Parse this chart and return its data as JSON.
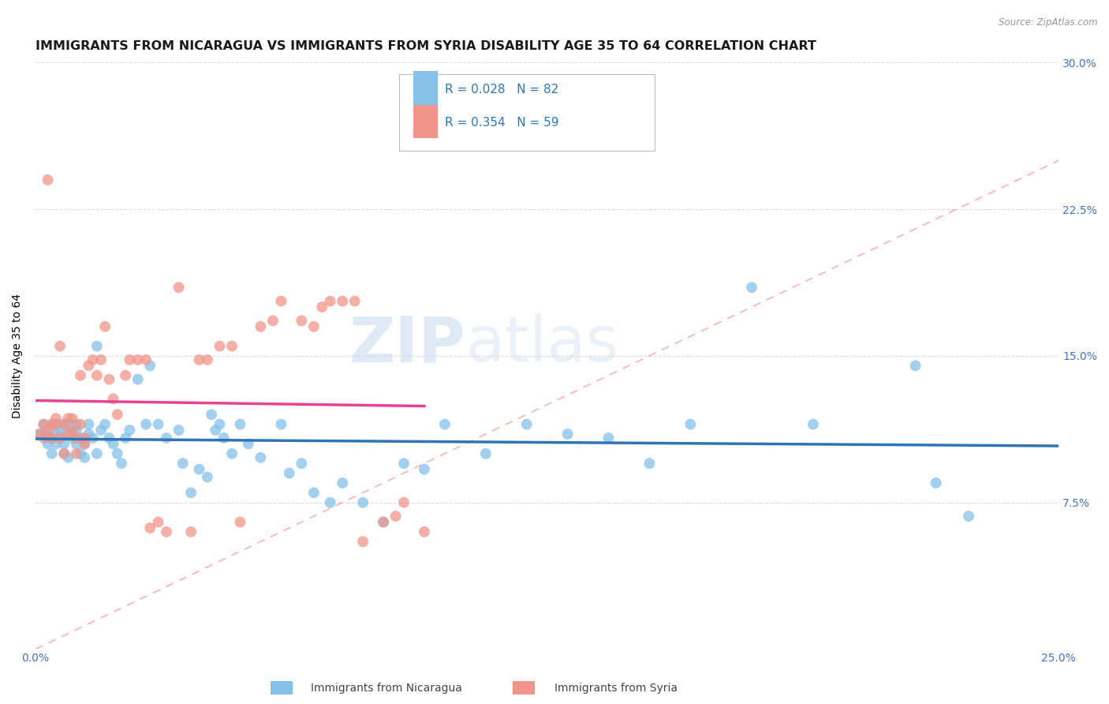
{
  "title": "IMMIGRANTS FROM NICARAGUA VS IMMIGRANTS FROM SYRIA DISABILITY AGE 35 TO 64 CORRELATION CHART",
  "source": "Source: ZipAtlas.com",
  "ylabel": "Disability Age 35 to 64",
  "xlim": [
    0,
    0.25
  ],
  "ylim": [
    0,
    0.3
  ],
  "xticks": [
    0.0,
    0.05,
    0.1,
    0.15,
    0.2,
    0.25
  ],
  "yticks": [
    0.0,
    0.075,
    0.15,
    0.225,
    0.3
  ],
  "xtick_labels_show": [
    "0.0%",
    "25.0%"
  ],
  "ytick_labels_show": [
    "7.5%",
    "15.0%",
    "22.5%",
    "30.0%"
  ],
  "nicaragua_color": "#85C1E9",
  "syria_color": "#F1948A",
  "nicaragua_R": 0.028,
  "nicaragua_N": 82,
  "syria_R": 0.354,
  "syria_N": 59,
  "legend_label_nicaragua": "Immigrants from Nicaragua",
  "legend_label_syria": "Immigrants from Syria",
  "trend_color_nicaragua": "#2E75B6",
  "trend_color_syria": "#E84393",
  "diag_line_color": "#F1948A",
  "background_color": "#FFFFFF",
  "watermark_zip": "ZIP",
  "watermark_atlas": "atlas",
  "title_fontsize": 11.5,
  "axis_label_fontsize": 10,
  "tick_fontsize": 10,
  "nicaragua_x": [
    0.001,
    0.002,
    0.002,
    0.003,
    0.003,
    0.003,
    0.004,
    0.004,
    0.004,
    0.005,
    0.005,
    0.005,
    0.006,
    0.006,
    0.007,
    0.007,
    0.007,
    0.008,
    0.008,
    0.008,
    0.009,
    0.009,
    0.01,
    0.01,
    0.01,
    0.011,
    0.011,
    0.012,
    0.012,
    0.013,
    0.013,
    0.014,
    0.015,
    0.015,
    0.016,
    0.017,
    0.018,
    0.019,
    0.02,
    0.021,
    0.022,
    0.023,
    0.025,
    0.027,
    0.028,
    0.03,
    0.032,
    0.035,
    0.036,
    0.038,
    0.04,
    0.042,
    0.043,
    0.044,
    0.045,
    0.046,
    0.048,
    0.05,
    0.052,
    0.055,
    0.06,
    0.062,
    0.065,
    0.068,
    0.072,
    0.075,
    0.08,
    0.085,
    0.09,
    0.095,
    0.1,
    0.11,
    0.12,
    0.13,
    0.14,
    0.15,
    0.16,
    0.175,
    0.19,
    0.215,
    0.22,
    0.228
  ],
  "nicaragua_y": [
    0.11,
    0.115,
    0.11,
    0.108,
    0.105,
    0.112,
    0.1,
    0.108,
    0.115,
    0.105,
    0.11,
    0.115,
    0.108,
    0.112,
    0.1,
    0.105,
    0.115,
    0.098,
    0.11,
    0.115,
    0.108,
    0.11,
    0.112,
    0.105,
    0.115,
    0.1,
    0.108,
    0.098,
    0.105,
    0.11,
    0.115,
    0.108,
    0.155,
    0.1,
    0.112,
    0.115,
    0.108,
    0.105,
    0.1,
    0.095,
    0.108,
    0.112,
    0.138,
    0.115,
    0.145,
    0.115,
    0.108,
    0.112,
    0.095,
    0.08,
    0.092,
    0.088,
    0.12,
    0.112,
    0.115,
    0.108,
    0.1,
    0.115,
    0.105,
    0.098,
    0.115,
    0.09,
    0.095,
    0.08,
    0.075,
    0.085,
    0.075,
    0.065,
    0.095,
    0.092,
    0.115,
    0.1,
    0.115,
    0.11,
    0.108,
    0.095,
    0.115,
    0.185,
    0.115,
    0.145,
    0.085,
    0.068
  ],
  "syria_x": [
    0.001,
    0.002,
    0.002,
    0.003,
    0.003,
    0.004,
    0.004,
    0.005,
    0.005,
    0.006,
    0.006,
    0.007,
    0.007,
    0.008,
    0.008,
    0.009,
    0.009,
    0.01,
    0.01,
    0.011,
    0.011,
    0.012,
    0.012,
    0.013,
    0.014,
    0.015,
    0.016,
    0.017,
    0.018,
    0.019,
    0.02,
    0.022,
    0.023,
    0.025,
    0.027,
    0.028,
    0.03,
    0.032,
    0.035,
    0.038,
    0.04,
    0.042,
    0.045,
    0.048,
    0.05,
    0.055,
    0.058,
    0.06,
    0.065,
    0.068,
    0.07,
    0.072,
    0.075,
    0.078,
    0.08,
    0.085,
    0.088,
    0.09,
    0.095
  ],
  "syria_y": [
    0.11,
    0.115,
    0.108,
    0.112,
    0.24,
    0.108,
    0.115,
    0.115,
    0.118,
    0.155,
    0.108,
    0.1,
    0.115,
    0.11,
    0.118,
    0.118,
    0.112,
    0.1,
    0.108,
    0.115,
    0.14,
    0.105,
    0.108,
    0.145,
    0.148,
    0.14,
    0.148,
    0.165,
    0.138,
    0.128,
    0.12,
    0.14,
    0.148,
    0.148,
    0.148,
    0.062,
    0.065,
    0.06,
    0.185,
    0.06,
    0.148,
    0.148,
    0.155,
    0.155,
    0.065,
    0.165,
    0.168,
    0.178,
    0.168,
    0.165,
    0.175,
    0.178,
    0.178,
    0.178,
    0.055,
    0.065,
    0.068,
    0.075,
    0.06
  ]
}
